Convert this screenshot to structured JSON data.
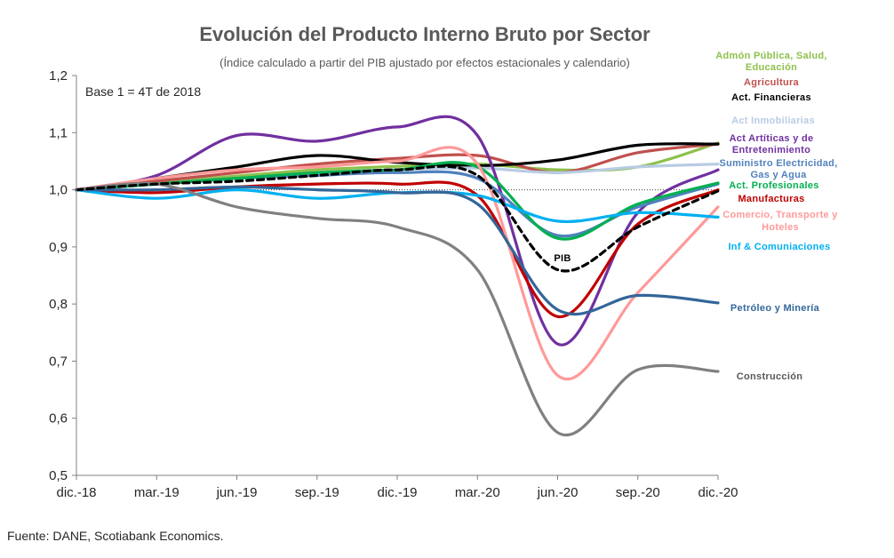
{
  "chart_data": {
    "type": "line",
    "title": "Evolución del Producto Interno Bruto por Sector",
    "subtitle": "(Índice calculado a partir del PIB ajustado por efectos estacionales y calendario)",
    "note": "Base 1 = 4T de 2018",
    "categories": [
      "dic.-18",
      "mar.-19",
      "jun.-19",
      "sep.-19",
      "dic.-19",
      "mar.-20",
      "jun.-20",
      "sep.-20",
      "dic.-20"
    ],
    "y_ticks": [
      "0,5",
      "0,6",
      "0,7",
      "0,8",
      "0,9",
      "1,0",
      "1,1",
      "1,2"
    ],
    "ylim": [
      0.5,
      1.2
    ],
    "reference_line": 1.0,
    "series": [
      {
        "name": "Admón Pública, Salud, Educación",
        "label_lines": [
          "Admón  Pública, Salud,",
          "Educación"
        ],
        "color": "#8DC04A",
        "dashed": false,
        "values": [
          1.0,
          1.012,
          1.024,
          1.035,
          1.041,
          1.045,
          1.035,
          1.04,
          1.082
        ]
      },
      {
        "name": "Agricultura",
        "label_lines": [
          "Agricultura"
        ],
        "color": "#C0504D",
        "dashed": false,
        "values": [
          1.0,
          1.015,
          1.03,
          1.045,
          1.055,
          1.06,
          1.03,
          1.065,
          1.08
        ]
      },
      {
        "name": "Act. Financieras",
        "label_lines": [
          "Act.  Financieras"
        ],
        "color": "#000000",
        "dashed": false,
        "values": [
          1.0,
          1.02,
          1.04,
          1.06,
          1.048,
          1.042,
          1.052,
          1.078,
          1.08
        ]
      },
      {
        "name": "Act Inmobiliarias",
        "label_lines": [
          "Act  Inmobiliarias"
        ],
        "color": "#B8CCE4",
        "dashed": false,
        "values": [
          1.0,
          1.01,
          1.02,
          1.03,
          1.035,
          1.038,
          1.03,
          1.04,
          1.045
        ]
      },
      {
        "name": "Act Artíticas y de Entretenimiento",
        "label_lines": [
          "Act  Artíticas  y  de",
          "Entretenimiento"
        ],
        "color": "#7030A0",
        "dashed": false,
        "values": [
          1.0,
          1.025,
          1.095,
          1.085,
          1.11,
          1.095,
          0.73,
          0.96,
          1.035
        ]
      },
      {
        "name": "Suministro Electricidad, Gas y Agua",
        "label_lines": [
          "Suministro  Electricidad,",
          "Gas  y  Agua"
        ],
        "color": "#4F81BD",
        "dashed": false,
        "values": [
          1.0,
          1.01,
          1.02,
          1.025,
          1.03,
          1.02,
          0.92,
          0.97,
          1.01
        ]
      },
      {
        "name": "Act. Profesionales",
        "label_lines": [
          "Act.  Profesionales"
        ],
        "color": "#00B050",
        "dashed": false,
        "values": [
          1.0,
          1.01,
          1.02,
          1.03,
          1.035,
          1.04,
          0.915,
          0.975,
          1.012
        ]
      },
      {
        "name": "Manufacturas",
        "label_lines": [
          "Manufacturas"
        ],
        "color": "#C00000",
        "dashed": false,
        "values": [
          1.0,
          0.995,
          1.005,
          1.01,
          1.01,
          0.99,
          0.778,
          0.94,
          1.0
        ]
      },
      {
        "name": "Comercio, Transporte y Hoteles",
        "label_lines": [
          "Comercio,  Transporte  y",
          "Hoteles"
        ],
        "color": "#FF9999",
        "dashed": false,
        "values": [
          1.0,
          1.02,
          1.035,
          1.04,
          1.05,
          1.045,
          0.675,
          0.82,
          0.97
        ]
      },
      {
        "name": "Inf & Comuniaciones",
        "label_lines": [
          "Inf & Comuniaciones"
        ],
        "color": "#00B0F0",
        "dashed": false,
        "values": [
          1.0,
          0.985,
          1.0,
          0.985,
          0.995,
          0.99,
          0.945,
          0.96,
          0.952
        ]
      },
      {
        "name": "Petróleo y Minería",
        "label_lines": [
          "Petróleo  y  Minería"
        ],
        "color": "#336699",
        "dashed": false,
        "values": [
          1.0,
          1.0,
          1.005,
          1.0,
          0.995,
          0.975,
          0.79,
          0.815,
          0.802
        ]
      },
      {
        "name": "Construcción",
        "label_lines": [
          "Construcción"
        ],
        "color": "#808080",
        "dashed": false,
        "values": [
          1.0,
          1.01,
          0.97,
          0.95,
          0.935,
          0.86,
          0.575,
          0.685,
          0.682
        ]
      },
      {
        "name": "PIB",
        "label_lines": [
          "PIB"
        ],
        "color": "#000000",
        "dashed": true,
        "values": [
          1.0,
          1.01,
          1.015,
          1.025,
          1.035,
          1.025,
          0.86,
          0.935,
          0.998
        ]
      }
    ]
  },
  "source": "Fuente: DANE, Scotiabank Economics."
}
